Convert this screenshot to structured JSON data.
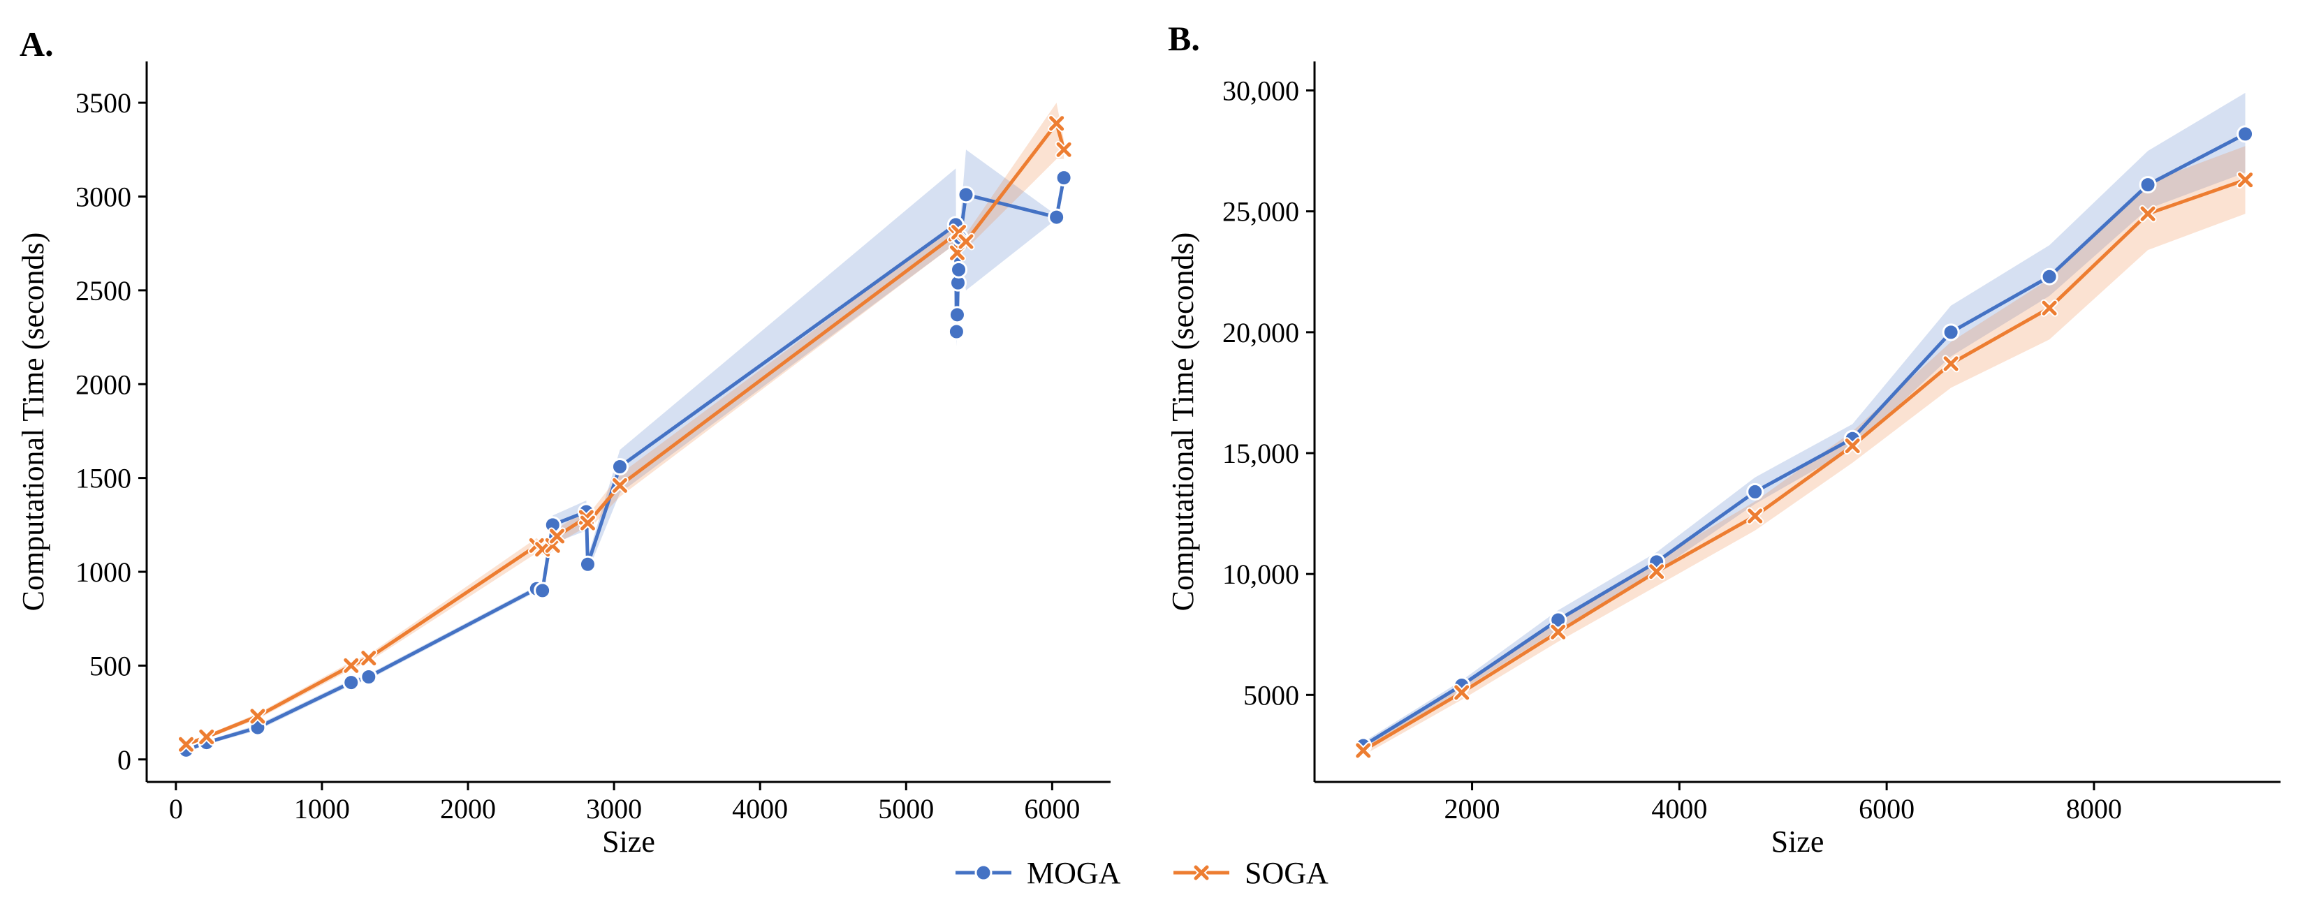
{
  "colors": {
    "MOGA": "#4472c4",
    "SOGA": "#ed7d31"
  },
  "legend": {
    "items": [
      {
        "name": "MOGA",
        "marker": "circle"
      },
      {
        "name": "SOGA",
        "marker": "x"
      }
    ],
    "placement": "bottom-center"
  },
  "chart_data": [
    {
      "panel_label": "A.",
      "type": "line",
      "xlabel": "Size",
      "ylabel": "Computational Time (seconds)",
      "xlim": [
        -200,
        6400
      ],
      "ylim": [
        -120,
        3720
      ],
      "xticks": [
        0,
        1000,
        2000,
        3000,
        4000,
        5000,
        6000
      ],
      "xtick_labels": [
        "0",
        "1000",
        "2000",
        "3000",
        "4000",
        "5000",
        "6000"
      ],
      "yticks": [
        0,
        500,
        1000,
        1500,
        2000,
        2500,
        3000,
        3500
      ],
      "ytick_labels": [
        "0",
        "500",
        "1000",
        "1500",
        "2000",
        "2500",
        "3000",
        "3500"
      ],
      "grid": false,
      "series": [
        {
          "name": "MOGA",
          "x": [
            70,
            210,
            560,
            1200,
            1320,
            2470,
            2510,
            2580,
            2810,
            2820,
            3040,
            5340,
            5345,
            5350,
            5355,
            5360,
            5370,
            5410,
            6030,
            6080
          ],
          "y": [
            50,
            90,
            170,
            410,
            440,
            910,
            900,
            1250,
            1320,
            1040,
            1560,
            2850,
            2280,
            2370,
            2540,
            2610,
            2780,
            3010,
            2890,
            3100
          ],
          "band_lower": [
            40,
            80,
            155,
            395,
            425,
            895,
            885,
            1150,
            1220,
            1000,
            1420,
            2750,
            2200,
            2300,
            2480,
            2560,
            2700,
            2500,
            2880,
            3080
          ],
          "band_upper": [
            60,
            100,
            185,
            425,
            455,
            925,
            915,
            1300,
            1380,
            1080,
            1650,
            3150,
            2350,
            2450,
            2600,
            2660,
            2860,
            3250,
            2900,
            3120
          ]
        },
        {
          "name": "SOGA",
          "x": [
            70,
            210,
            560,
            1200,
            1320,
            2470,
            2510,
            2580,
            2610,
            2810,
            2820,
            3040,
            5340,
            5350,
            5360,
            5410,
            6030,
            6080
          ],
          "y": [
            80,
            120,
            230,
            500,
            540,
            1140,
            1120,
            1140,
            1190,
            1290,
            1260,
            1460,
            2800,
            2700,
            2810,
            2760,
            3390,
            3250
          ],
          "band_lower": [
            70,
            110,
            215,
            480,
            520,
            1100,
            1090,
            1110,
            1150,
            1240,
            1220,
            1400,
            2750,
            2660,
            2770,
            2720,
            3200,
            3200
          ],
          "band_upper": [
            90,
            130,
            245,
            520,
            560,
            1180,
            1150,
            1170,
            1230,
            1330,
            1300,
            1520,
            2850,
            2740,
            2850,
            2800,
            3500,
            3300
          ]
        }
      ]
    },
    {
      "panel_label": "B.",
      "type": "line",
      "xlabel": "Size",
      "ylabel": "Computational Time (seconds)",
      "xlim": [
        480,
        9800
      ],
      "ylim": [
        1400,
        31200
      ],
      "xticks": [
        2000,
        4000,
        6000,
        8000
      ],
      "xtick_labels": [
        "2000",
        "4000",
        "6000",
        "8000"
      ],
      "yticks": [
        5000,
        10000,
        15000,
        20000,
        25000,
        30000
      ],
      "ytick_labels": [
        "5000",
        "10,000",
        "15,000",
        "20,000",
        "25,000",
        "30,000"
      ],
      "grid": false,
      "series": [
        {
          "name": "MOGA",
          "x": [
            950,
            1900,
            2830,
            3780,
            4730,
            5670,
            6620,
            7570,
            8520,
            9460
          ],
          "y": [
            2900,
            5400,
            8100,
            10500,
            13400,
            15600,
            20000,
            22300,
            26100,
            28200
          ],
          "band_lower": [
            2750,
            5200,
            7700,
            10100,
            12900,
            15200,
            19000,
            21500,
            25100,
            26600
          ],
          "band_upper": [
            3050,
            5600,
            8500,
            10900,
            14000,
            16200,
            21100,
            23600,
            27500,
            29900
          ]
        },
        {
          "name": "SOGA",
          "x": [
            950,
            1900,
            2830,
            3780,
            4730,
            5670,
            6620,
            7570,
            8520,
            9460
          ],
          "y": [
            2700,
            5100,
            7600,
            10100,
            12400,
            15300,
            18700,
            21000,
            24900,
            26300
          ],
          "band_lower": [
            2500,
            4800,
            7200,
            9500,
            11800,
            14600,
            17700,
            19700,
            23400,
            24900
          ],
          "band_upper": [
            2900,
            5400,
            8000,
            10600,
            13000,
            15900,
            19600,
            22200,
            26200,
            27700
          ]
        }
      ]
    }
  ]
}
